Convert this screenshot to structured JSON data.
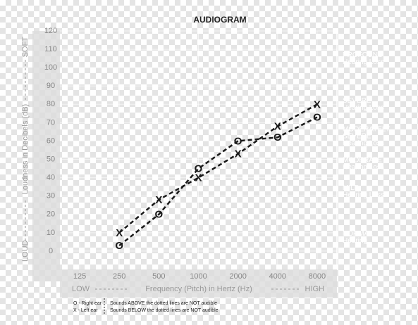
{
  "chart_data": {
    "type": "audiogram",
    "title": "AUDIOGRAM",
    "categories": [
      "125",
      "250",
      "500",
      "1000",
      "2000",
      "4000",
      "8000"
    ],
    "ylim": [
      -10,
      120
    ],
    "yticks": [
      0,
      10,
      20,
      30,
      40,
      50,
      60,
      70,
      80,
      90,
      100,
      110,
      120
    ],
    "grid": true,
    "y_label": [
      "LOUD",
      "Loudness in Decibels (dB)",
      "SOFT"
    ],
    "x_label": [
      "LOW",
      "Frequency (Pitch) in Hertz (Hz)",
      "HIGH"
    ],
    "bands": [
      {
        "from": -10,
        "to": 25,
        "color": "#7cb342",
        "label": [
          "NORMAL",
          "Hearing"
        ]
      },
      {
        "from": 25,
        "to": 40,
        "color": "#f7941d",
        "label": [
          "MILD",
          "Hearing Loss"
        ]
      },
      {
        "from": 40,
        "to": 55,
        "color": "#f26a2a",
        "label": [
          "MODERATE",
          "Hearing Loss"
        ]
      },
      {
        "from": 55,
        "to": 70,
        "color": "#e8452c",
        "label": [
          "MODERATELY",
          "SEVERE",
          "Hearing Loss"
        ]
      },
      {
        "from": 70,
        "to": 90,
        "color": "#c0202b",
        "label": [
          "SEVERE",
          "Hearing Loss"
        ]
      },
      {
        "from": 90,
        "to": 120,
        "color": "#92278f",
        "label": [
          "PROFOUND",
          "Hearing Loss"
        ]
      }
    ],
    "series": [
      {
        "marker": "O",
        "color": "#1a1a1a",
        "values": [
          null,
          3,
          20,
          45,
          60,
          62,
          73
        ]
      },
      {
        "marker": "X",
        "color": "#1a1a1a",
        "values": [
          null,
          10,
          28,
          40,
          53,
          68,
          80
        ]
      }
    ],
    "legend": [
      "O - Right ear",
      "X - Left ear"
    ],
    "notes": [
      "Sounds ABOVE the dotted lines are NOT audible",
      "Sounds BELOW the dotted lines are NOT audible"
    ]
  }
}
